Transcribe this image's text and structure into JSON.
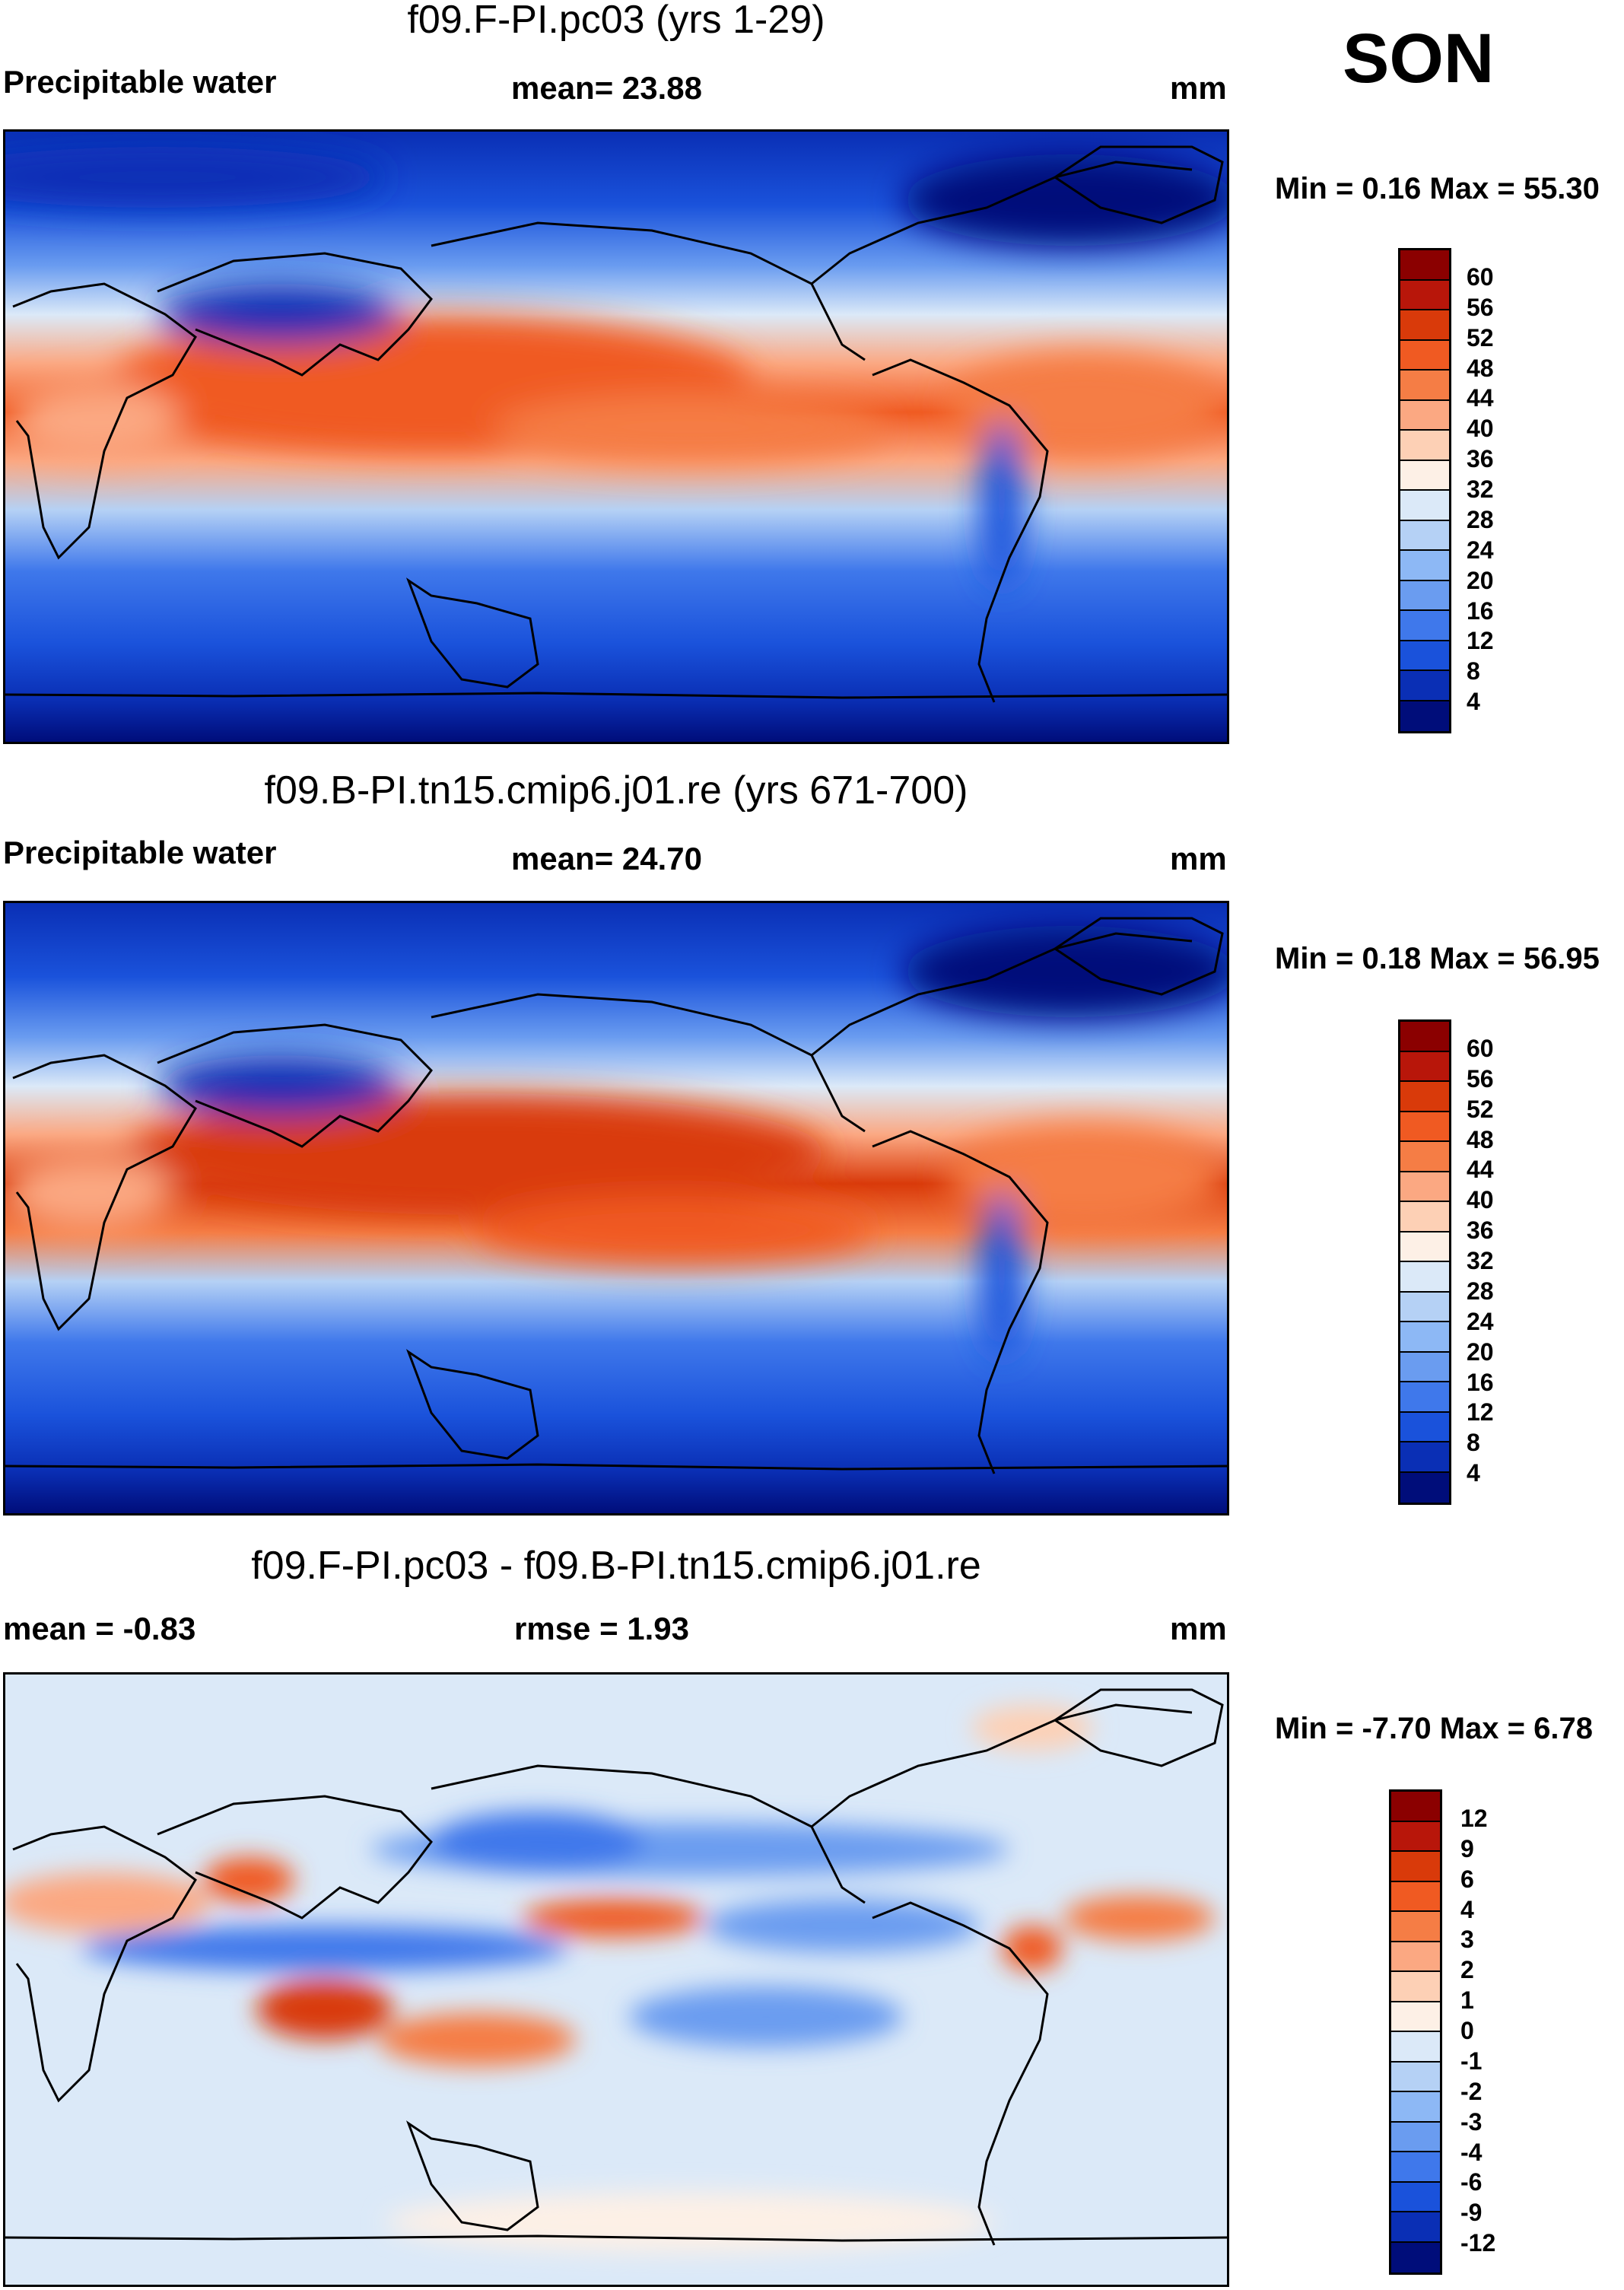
{
  "season": "SON",
  "panels": [
    {
      "id": "top",
      "title": "f09.F-PI.pc03 (yrs 1-29)",
      "left_label": "Precipitable water",
      "center_label": "mean=  23.88",
      "unit": "mm",
      "minmax": "Min =   0.16 Max =  55.30",
      "colorbar": {
        "colors": [
          "#8b0000",
          "#b8160a",
          "#d93a0a",
          "#f05a22",
          "#f57d45",
          "#fba882",
          "#fdd0b5",
          "#fdf0e6",
          "#dbe9f8",
          "#b5d1f5",
          "#8db8f5",
          "#6a9cf0",
          "#3f78eb",
          "#1a52db",
          "#0a2fb5",
          "#000d7a"
        ],
        "ticks": [
          "60",
          "56",
          "52",
          "48",
          "44",
          "40",
          "36",
          "32",
          "28",
          "24",
          "20",
          "16",
          "12",
          "8",
          "4"
        ]
      }
    },
    {
      "id": "middle",
      "title": "f09.B-PI.tn15.cmip6.j01.re (yrs 671-700)",
      "left_label": "Precipitable water",
      "center_label": "mean=  24.70",
      "unit": "mm",
      "minmax": "Min =   0.18 Max =  56.95",
      "colorbar": {
        "colors": [
          "#8b0000",
          "#b8160a",
          "#d93a0a",
          "#f05a22",
          "#f57d45",
          "#fba882",
          "#fdd0b5",
          "#fdf0e6",
          "#dbe9f8",
          "#b5d1f5",
          "#8db8f5",
          "#6a9cf0",
          "#3f78eb",
          "#1a52db",
          "#0a2fb5",
          "#000d7a"
        ],
        "ticks": [
          "60",
          "56",
          "52",
          "48",
          "44",
          "40",
          "36",
          "32",
          "28",
          "24",
          "20",
          "16",
          "12",
          "8",
          "4"
        ]
      }
    },
    {
      "id": "bottom",
      "title": "f09.F-PI.pc03 - f09.B-PI.tn15.cmip6.j01.re",
      "left_label": "mean =  -0.83",
      "center_label": "rmse =   1.93",
      "unit": "mm",
      "minmax": "Min =  -7.70 Max =   6.78",
      "colorbar": {
        "colors": [
          "#8b0000",
          "#b8160a",
          "#d93a0a",
          "#f05a22",
          "#f57d45",
          "#fba882",
          "#fdd0b5",
          "#fdf0e6",
          "#dbe9f8",
          "#b5d1f5",
          "#8db8f5",
          "#6a9cf0",
          "#3f78eb",
          "#1a52db",
          "#0a2fb5",
          "#000d7a"
        ],
        "ticks": [
          "12",
          "9",
          "6",
          "4",
          "3",
          "2",
          "1",
          "0",
          "-1",
          "-2",
          "-3",
          "-4",
          "-6",
          "-9",
          "-12"
        ]
      }
    }
  ],
  "colors": {
    "deep_blue": "#000d7a",
    "mid_blue": "#1a52db",
    "light_blue": "#b5d1f5",
    "pale_blue": "#dbe9f8",
    "neutral": "#fdf0e6",
    "orange": "#f57d45",
    "red": "#d93a0a",
    "dark_red": "#8b0000"
  }
}
